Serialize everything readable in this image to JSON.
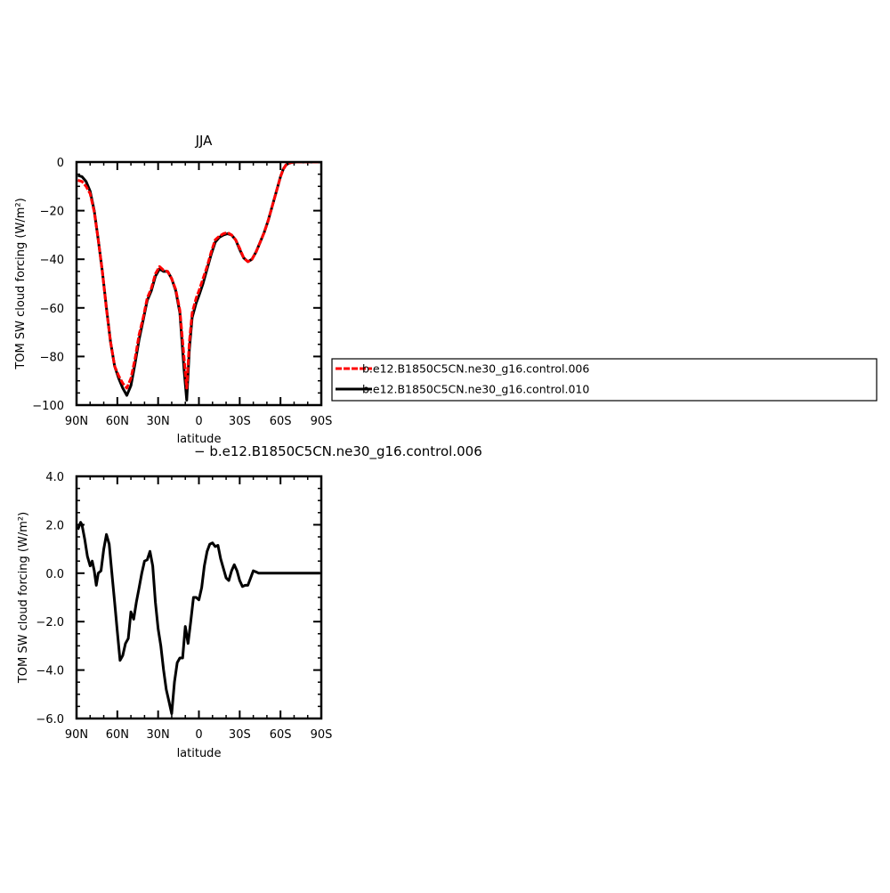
{
  "chart_data": [
    {
      "type": "line",
      "title": "JJA",
      "xlabel": "latitude",
      "ylabel": "TOM SW cloud forcing (W/m²)",
      "xlim": [
        90,
        -90
      ],
      "ylim": [
        -100,
        0
      ],
      "x_ticks": [
        90,
        60,
        30,
        0,
        -30,
        -60,
        -90
      ],
      "x_tick_labels": [
        "90N",
        "60N",
        "30N",
        "0",
        "30S",
        "60S",
        "90S"
      ],
      "y_ticks": [
        0,
        -20,
        -40,
        -60,
        -80,
        -100
      ],
      "y_tick_labels": [
        "0",
        "−20",
        "−40",
        "−60",
        "−80",
        "−100"
      ],
      "legend": "right",
      "series": [
        {
          "name": "b.e12.B1850C5CN.ne30_g16.control.010",
          "color": "#000000",
          "x": [
            89,
            86,
            83,
            80,
            77,
            74,
            71,
            68,
            65,
            62,
            59,
            56,
            53,
            50,
            47,
            44,
            41,
            38,
            35,
            32,
            29,
            26,
            23,
            20,
            17,
            14,
            11,
            9,
            7,
            5,
            2,
            0,
            -3,
            -6,
            -9,
            -12,
            -15,
            -18,
            -21,
            -24,
            -27,
            -30,
            -33,
            -36,
            -39,
            -42,
            -45,
            -48,
            -51,
            -54,
            -57,
            -60,
            -62,
            -64,
            -66,
            -68,
            -70,
            -75,
            -80,
            -85,
            -89
          ],
          "values": [
            -5.5,
            -6,
            -8,
            -12,
            -20,
            -32,
            -45,
            -60,
            -74,
            -84,
            -89,
            -93,
            -96,
            -92,
            -83,
            -73,
            -65,
            -57,
            -53,
            -47,
            -44,
            -45,
            -45,
            -48,
            -53,
            -62,
            -85,
            -98,
            -77,
            -64,
            -58,
            -55,
            -50,
            -44,
            -38,
            -33,
            -31,
            -30,
            -29.5,
            -30,
            -32,
            -36,
            -39.5,
            -41,
            -40,
            -37,
            -33,
            -29,
            -24,
            -18,
            -12,
            -6,
            -3,
            -1.2,
            -0.5,
            -0.2,
            0,
            0,
            0,
            0,
            0
          ]
        },
        {
          "name": "b.e12.B1850C5CN.ne30_g16.control.006",
          "color": "#ff0000",
          "x": [
            89,
            86,
            83,
            80,
            77,
            74,
            71,
            68,
            65,
            62,
            59,
            56,
            53,
            50,
            47,
            44,
            41,
            38,
            35,
            32,
            29,
            26,
            23,
            20,
            17,
            14,
            11,
            9,
            7,
            5,
            2,
            0,
            -3,
            -6,
            -9,
            -12,
            -15,
            -18,
            -21,
            -24,
            -27,
            -30,
            -33,
            -36,
            -39,
            -42,
            -45,
            -48,
            -51,
            -54,
            -57,
            -60,
            -62,
            -64,
            -66,
            -68,
            -70,
            -75,
            -80,
            -85,
            -89
          ],
          "values": [
            -7.5,
            -8,
            -10,
            -13,
            -20.5,
            -32,
            -45,
            -60.5,
            -74,
            -84,
            -88,
            -91,
            -93,
            -89,
            -81,
            -71,
            -64,
            -56,
            -52,
            -46,
            -43,
            -44.5,
            -45,
            -48,
            -52.5,
            -61,
            -80,
            -93,
            -74,
            -62,
            -56,
            -53,
            -48,
            -43,
            -37,
            -32,
            -30.5,
            -29.5,
            -29,
            -30,
            -32,
            -35.5,
            -39.5,
            -41,
            -40,
            -37,
            -33,
            -29,
            -24,
            -18,
            -12,
            -6,
            -3,
            -1.2,
            -0.5,
            -0.2,
            0,
            0,
            0,
            0,
            0
          ]
        }
      ]
    },
    {
      "type": "line",
      "title": "− b.e12.B1850C5CN.ne30_g16.control.006",
      "xlabel": "latitude",
      "ylabel": "TOM SW cloud forcing (W/m²)",
      "xlim": [
        90,
        -90
      ],
      "ylim": [
        -6,
        4
      ],
      "x_ticks": [
        90,
        60,
        30,
        0,
        -30,
        -60,
        -90
      ],
      "x_tick_labels": [
        "90N",
        "60N",
        "30N",
        "0",
        "30S",
        "60S",
        "90S"
      ],
      "y_ticks": [
        4,
        2,
        0,
        -2,
        -4,
        -6
      ],
      "y_tick_labels": [
        "4.0",
        "2.0",
        "0.0",
        "−2.0",
        "−4.0",
        "−6.0"
      ],
      "series": [
        {
          "name": "",
          "color": "#000000",
          "x": [
            89,
            87,
            86,
            84,
            82,
            80,
            78.5,
            77,
            75.5,
            74,
            72,
            70,
            68,
            66,
            64,
            62,
            60,
            58,
            56,
            54,
            52,
            50,
            48,
            46,
            44,
            42,
            40,
            38,
            36,
            34,
            32,
            30,
            28,
            26,
            24,
            22,
            20,
            18,
            16,
            14,
            12,
            10,
            8,
            6,
            4,
            2,
            0,
            -2,
            -4,
            -6,
            -8,
            -10,
            -12,
            -14,
            -16,
            -18,
            -20,
            -22,
            -24,
            -26,
            -28,
            -30,
            -32,
            -34,
            -36,
            -38,
            -40,
            -42,
            -44,
            -46,
            -48,
            -50,
            -52,
            -54,
            -56,
            -58,
            -60,
            -62,
            -64,
            -66,
            -68,
            -70,
            -75,
            -80,
            -85,
            -89
          ],
          "values": [
            1.8,
            2.1,
            2.0,
            1.4,
            0.7,
            0.3,
            0.5,
            0.1,
            -0.5,
            0.0,
            0.1,
            1.0,
            1.6,
            1.2,
            0.0,
            -1.2,
            -2.4,
            -3.6,
            -3.4,
            -2.9,
            -2.7,
            -1.6,
            -1.9,
            -1.2,
            -0.6,
            0.0,
            0.5,
            0.55,
            0.9,
            0.3,
            -1.2,
            -2.3,
            -3.0,
            -4.0,
            -4.8,
            -5.3,
            -5.8,
            -4.5,
            -3.7,
            -3.5,
            -3.5,
            -2.2,
            -2.9,
            -2.0,
            -1.0,
            -1.0,
            -1.1,
            -0.6,
            0.3,
            0.9,
            1.2,
            1.25,
            1.1,
            1.15,
            0.6,
            0.2,
            -0.2,
            -0.3,
            0.1,
            0.35,
            0.1,
            -0.3,
            -0.55,
            -0.5,
            -0.5,
            -0.2,
            0.1,
            0.05,
            0.0,
            0.0,
            0.0,
            0.0,
            0.0,
            0.0,
            0.0,
            0.0,
            0.0,
            0.0,
            0.0,
            0.0,
            0.0,
            0.0,
            0.0,
            0.0,
            0.0,
            0.0
          ]
        }
      ]
    }
  ]
}
